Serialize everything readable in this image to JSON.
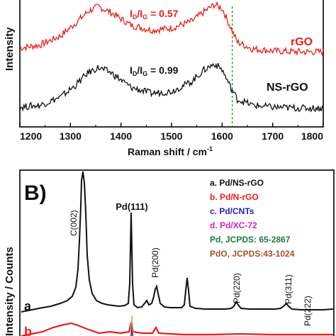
{
  "chart_data": [
    {
      "type": "line",
      "panel": "A",
      "ylabel": "Intensity",
      "xlabel": "Raman shift / cm",
      "xlabel_superscript": "-1",
      "xlim": [
        1200,
        1800
      ],
      "x_ticks": [
        "1200",
        "1300",
        "1400",
        "1500",
        "1600",
        "1700",
        "1800"
      ],
      "x_tick_values": [
        1200,
        1300,
        1400,
        1500,
        1600,
        1700,
        1800
      ],
      "reference_line_x": 1620,
      "series": [
        {
          "name": "rGO",
          "color": "#e8201c",
          "x": [
            1200,
            1240,
            1280,
            1310,
            1335,
            1355,
            1380,
            1420,
            1460,
            1500,
            1540,
            1565,
            1585,
            1600,
            1615,
            1630,
            1660,
            1700,
            1750,
            1800
          ],
          "y": [
            0.8,
            0.83,
            0.92,
            1.05,
            1.17,
            1.22,
            1.16,
            1.03,
            0.98,
            1.0,
            1.07,
            1.17,
            1.24,
            1.2,
            1.03,
            0.86,
            0.79,
            0.77,
            0.76,
            0.76
          ]
        },
        {
          "name": "NS-rGO",
          "color": "#111111",
          "x": [
            1200,
            1240,
            1280,
            1310,
            1335,
            1355,
            1380,
            1420,
            1460,
            1500,
            1540,
            1565,
            1585,
            1600,
            1615,
            1630,
            1660,
            1700,
            1750,
            1800
          ],
          "y": [
            0.2,
            0.22,
            0.3,
            0.42,
            0.55,
            0.6,
            0.55,
            0.4,
            0.34,
            0.36,
            0.46,
            0.58,
            0.64,
            0.58,
            0.42,
            0.28,
            0.22,
            0.2,
            0.19,
            0.19
          ]
        }
      ],
      "annotations": {
        "ratio_top": {
          "sub_a": "D",
          "sub_b": "G",
          "value": " = 0.57"
        },
        "ratio_bottom": {
          "sub_a": "D",
          "sub_b": "G",
          "value": " = 0.99"
        },
        "ratio_letter": "I",
        "ratio_slash": "/"
      },
      "series_labels": [
        "rGO",
        "NS-rGO"
      ]
    },
    {
      "type": "line",
      "panel": "B",
      "panel_label": "B)",
      "ylabel": "Intensity / Counts",
      "legend": [
        {
          "text": "a. Pd/NS-rGO",
          "color": "#111111"
        },
        {
          "text": "b. Pd/N-rGO",
          "color": "#e8201c"
        },
        {
          "text": "c. Pd/CNTs",
          "color": "#2020c0"
        },
        {
          "text": "d. Pd/XC-72",
          "color": "#d020c0"
        },
        {
          "text": "Pd, JCPDS: 65-2867",
          "color": "#207a40"
        },
        {
          "text": "PdO, JCPDS:43-1024",
          "color": "#a0522d"
        }
      ],
      "peak_labels": [
        "C(002)",
        "Pd(111)",
        "Pd(200)",
        "Pd(220)",
        "Pd(311)",
        "Pd(222)"
      ],
      "trace_labels": [
        "a",
        "b"
      ],
      "colors": {
        "a": "#111111",
        "b": "#e8201c"
      }
    }
  ]
}
